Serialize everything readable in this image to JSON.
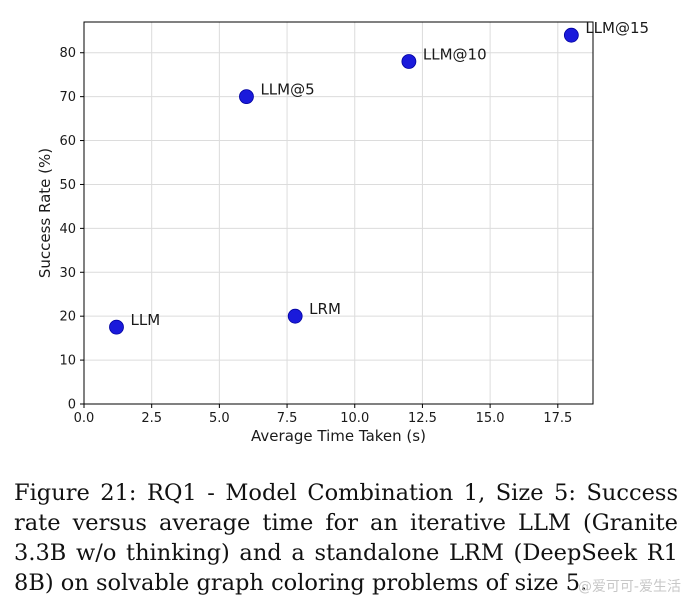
{
  "chart_data": {
    "type": "scatter",
    "xlabel": "Average Time Taken (s)",
    "ylabel": "Success Rate (%)",
    "xlim": [
      0,
      18.8
    ],
    "ylim": [
      0,
      87
    ],
    "xticks": [
      "0.0",
      "2.5",
      "5.0",
      "7.5",
      "10.0",
      "12.5",
      "15.0",
      "17.5"
    ],
    "yticks": [
      "0",
      "10",
      "20",
      "30",
      "40",
      "50",
      "60",
      "70",
      "80"
    ],
    "grid": true,
    "marker_color": "#1a1adb",
    "points": [
      {
        "label": "LLM",
        "x": 1.2,
        "y": 17.5
      },
      {
        "label": "LRM",
        "x": 7.8,
        "y": 20
      },
      {
        "label": "LLM@5",
        "x": 6.0,
        "y": 70
      },
      {
        "label": "LLM@10",
        "x": 12.0,
        "y": 78
      },
      {
        "label": "LLM@15",
        "x": 18.0,
        "y": 84
      }
    ]
  },
  "caption": "Figure 21: RQ1 - Model Combination 1, Size 5: Success rate versus average time for an iterative LLM (Granite 3.3B w/o thinking) and a standalone LRM (DeepSeek R1 8B) on solvable graph coloring problems of size 5.",
  "watermark": "@爱可可-爱生活"
}
